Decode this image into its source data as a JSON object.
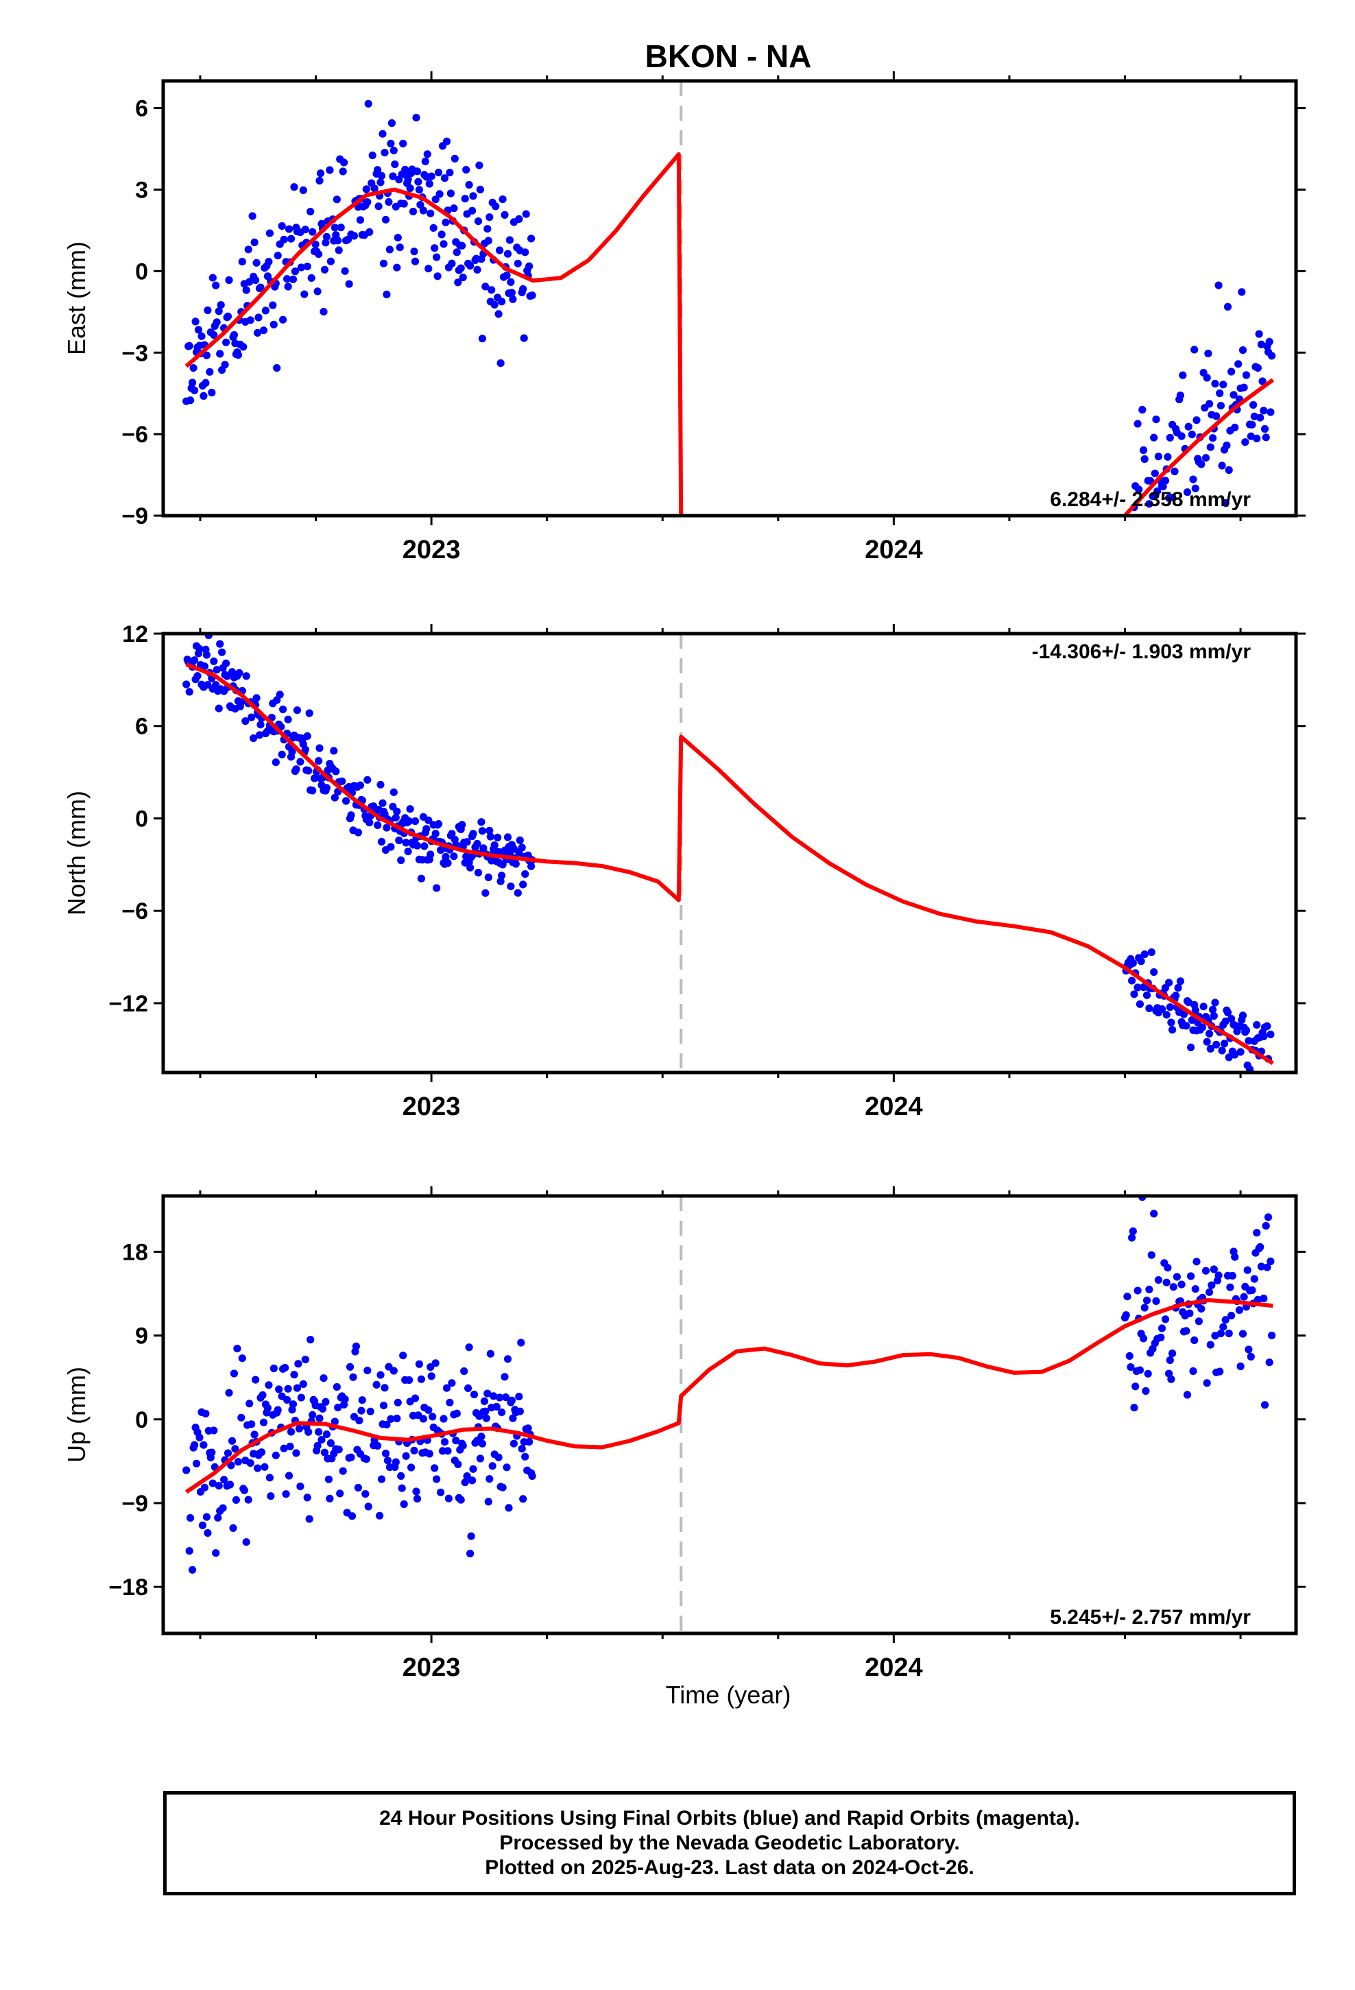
{
  "title": "BKON - NA",
  "colors": {
    "final": "#0000ff",
    "fit": "#ff0000",
    "gap_line": "#bbbbbb",
    "frame": "#000000"
  },
  "caption": {
    "line1": "24 Hour Positions Using Final Orbits (blue) and Rapid Orbits (magenta).",
    "line2": "Processed by the Nevada Geodetic Laboratory.",
    "line3": "Plotted on 2025-Aug-23. Last data on 2024-Oct-26."
  },
  "chart_data": [
    {
      "type": "scatter",
      "id": "east",
      "ylabel": "East (mm)",
      "xlabel": "",
      "rate_label": "6.284+/- 2.358 mm/yr",
      "xlim": [
        2022.42,
        2024.87
      ],
      "ylim": [
        -9,
        7
      ],
      "yticks": [
        6,
        3,
        0,
        -3,
        -6,
        -9
      ],
      "ytick_labels": [
        "6",
        "3",
        "0",
        "−3",
        "−6",
        "−9"
      ],
      "xtick_labels": [
        "2023",
        "2024"
      ],
      "gap_x": 2023.54,
      "grid": false,
      "fit": [
        [
          2022.47,
          -3.5
        ],
        [
          2022.55,
          -2.3
        ],
        [
          2022.63,
          -0.9
        ],
        [
          2022.71,
          0.6
        ],
        [
          2022.79,
          1.9
        ],
        [
          2022.86,
          2.8
        ],
        [
          2022.92,
          3.0
        ],
        [
          2022.98,
          2.7
        ],
        [
          2023.04,
          2.0
        ],
        [
          2023.1,
          1.0
        ],
        [
          2023.16,
          0.1
        ],
        [
          2023.22,
          -0.35
        ],
        [
          2023.28,
          -0.25
        ],
        [
          2023.34,
          0.4
        ],
        [
          2023.4,
          1.5
        ],
        [
          2023.46,
          2.8
        ],
        [
          2023.535,
          4.3
        ],
        [
          2023.54,
          -9.0
        ],
        [
          null,
          null
        ],
        [
          2024.5,
          -9.0
        ],
        [
          2024.58,
          -7.5
        ],
        [
          2024.66,
          -6.2
        ],
        [
          2024.74,
          -5.0
        ],
        [
          2024.82,
          -4.0
        ]
      ]
    },
    {
      "type": "scatter",
      "id": "north",
      "ylabel": "North (mm)",
      "xlabel": "",
      "rate_label": "-14.306+/- 1.903 mm/yr",
      "xlim": [
        2022.42,
        2024.87
      ],
      "ylim": [
        -16.5,
        12
      ],
      "yticks": [
        12,
        6,
        0,
        -6,
        -12
      ],
      "ytick_labels": [
        "12",
        "6",
        "0",
        "−6",
        "−12"
      ],
      "xtick_labels": [
        "2023",
        "2024"
      ],
      "gap_x": 2023.54,
      "grid": false,
      "fit": [
        [
          2022.47,
          10.0
        ],
        [
          2022.53,
          9.3
        ],
        [
          2022.59,
          8.0
        ],
        [
          2022.65,
          6.3
        ],
        [
          2022.71,
          4.5
        ],
        [
          2022.77,
          2.8
        ],
        [
          2022.83,
          1.3
        ],
        [
          2022.89,
          0.0
        ],
        [
          2022.95,
          -0.9
        ],
        [
          2023.01,
          -1.6
        ],
        [
          2023.07,
          -2.1
        ],
        [
          2023.13,
          -2.4
        ],
        [
          2023.19,
          -2.6
        ],
        [
          2023.25,
          -2.8
        ],
        [
          2023.31,
          -2.9
        ],
        [
          2023.37,
          -3.1
        ],
        [
          2023.43,
          -3.5
        ],
        [
          2023.49,
          -4.1
        ],
        [
          2023.535,
          -5.3
        ],
        [
          2023.54,
          5.3
        ],
        [
          2023.62,
          3.2
        ],
        [
          2023.7,
          0.9
        ],
        [
          2023.78,
          -1.2
        ],
        [
          2023.86,
          -2.9
        ],
        [
          2023.94,
          -4.3
        ],
        [
          2024.02,
          -5.4
        ],
        [
          2024.1,
          -6.2
        ],
        [
          2024.18,
          -6.7
        ],
        [
          2024.26,
          -7.0
        ],
        [
          2024.34,
          -7.4
        ],
        [
          2024.42,
          -8.3
        ],
        [
          2024.5,
          -9.7
        ],
        [
          2024.58,
          -11.4
        ],
        [
          2024.66,
          -13.0
        ],
        [
          2024.74,
          -14.4
        ],
        [
          2024.82,
          -15.9
        ]
      ]
    },
    {
      "type": "scatter",
      "id": "up",
      "ylabel": "Up (mm)",
      "xlabel": "Time (year)",
      "rate_label": "5.245+/- 2.757 mm/yr",
      "xlim": [
        2022.42,
        2024.87
      ],
      "ylim": [
        -23,
        24
      ],
      "yticks": [
        18,
        9,
        0,
        -9,
        -18
      ],
      "ytick_labels": [
        "18",
        "9",
        "0",
        "−9",
        "−18"
      ],
      "xtick_labels": [
        "2023",
        "2024"
      ],
      "gap_x": 2023.54,
      "grid": false,
      "fit": [
        [
          2022.47,
          -7.8
        ],
        [
          2022.53,
          -5.8
        ],
        [
          2022.59,
          -3.3
        ],
        [
          2022.65,
          -1.6
        ],
        [
          2022.71,
          -0.4
        ],
        [
          2022.77,
          -0.5
        ],
        [
          2022.83,
          -1.2
        ],
        [
          2022.89,
          -2.0
        ],
        [
          2022.95,
          -2.2
        ],
        [
          2023.01,
          -1.7
        ],
        [
          2023.07,
          -1.1
        ],
        [
          2023.13,
          -1.0
        ],
        [
          2023.19,
          -1.5
        ],
        [
          2023.25,
          -2.3
        ],
        [
          2023.31,
          -2.9
        ],
        [
          2023.37,
          -3.0
        ],
        [
          2023.43,
          -2.3
        ],
        [
          2023.49,
          -1.3
        ],
        [
          2023.535,
          -0.4
        ],
        [
          2023.54,
          2.5
        ],
        [
          2023.6,
          5.3
        ],
        [
          2023.66,
          7.3
        ],
        [
          2023.72,
          7.6
        ],
        [
          2023.78,
          6.9
        ],
        [
          2023.84,
          6.0
        ],
        [
          2023.9,
          5.8
        ],
        [
          2023.96,
          6.2
        ],
        [
          2024.02,
          6.9
        ],
        [
          2024.08,
          7.0
        ],
        [
          2024.14,
          6.6
        ],
        [
          2024.2,
          5.7
        ],
        [
          2024.26,
          5.0
        ],
        [
          2024.32,
          5.1
        ],
        [
          2024.38,
          6.3
        ],
        [
          2024.44,
          8.2
        ],
        [
          2024.5,
          10.0
        ],
        [
          2024.56,
          11.3
        ],
        [
          2024.62,
          12.3
        ],
        [
          2024.68,
          12.8
        ],
        [
          2024.74,
          12.6
        ],
        [
          2024.82,
          12.2
        ]
      ]
    }
  ]
}
